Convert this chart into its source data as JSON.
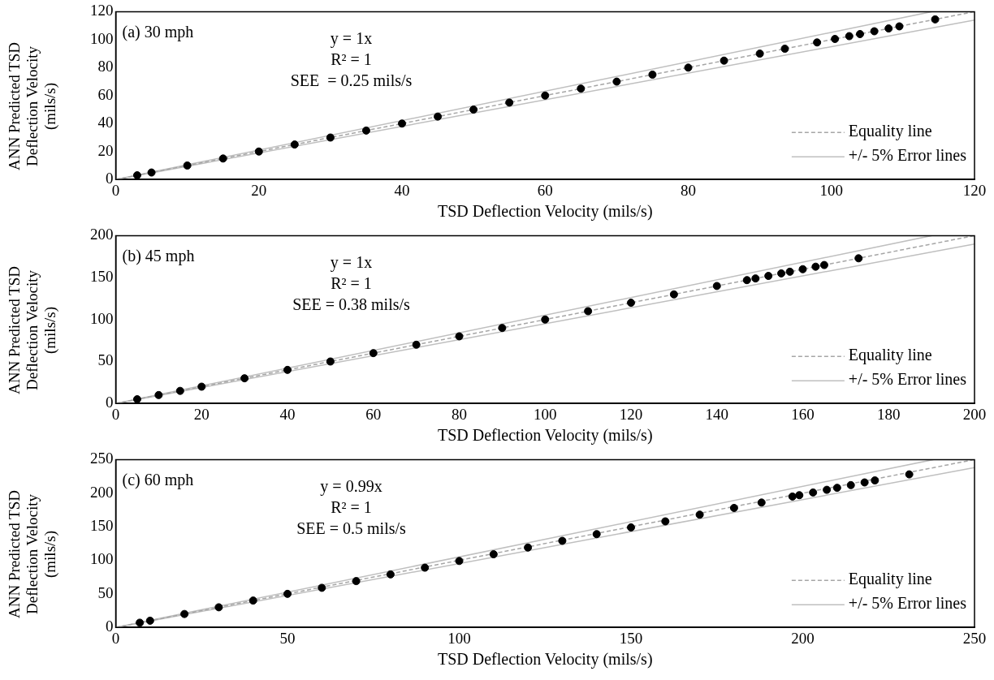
{
  "chart_data": [
    {
      "type": "scatter",
      "xlabel": "TSD Deflection Velocity (mils/s)",
      "ylabel": "ANN Predicted TSD Deflection Velocity (mils/s)",
      "xlim": [
        0,
        120
      ],
      "ylim": [
        0,
        120
      ],
      "xticks": [
        0,
        20,
        40,
        60,
        80,
        100,
        120
      ],
      "yticks": [
        0,
        20,
        40,
        60,
        80,
        100,
        120
      ],
      "grid": false,
      "legend": "bottom right",
      "annotations": [
        "(a) 30 mph",
        "y = 1x",
        "R² = 1",
        "SEE  = 0.25 mils/s"
      ],
      "series": [
        {
          "type": "scatter",
          "marker": "circle",
          "color": "#000000",
          "x": [
            3,
            5,
            10,
            15,
            20,
            25,
            30,
            35,
            40,
            45,
            50,
            55,
            60,
            65,
            70,
            75,
            80,
            85,
            90,
            93.5,
            98,
            100.5,
            102.5,
            104,
            106,
            108,
            109.5,
            114.5
          ],
          "values": [
            3,
            5,
            10,
            15,
            20,
            25,
            30,
            35,
            40,
            45,
            50,
            55,
            60,
            65,
            70,
            75,
            80,
            85,
            90,
            93.5,
            98,
            100.5,
            102.5,
            104,
            106,
            108,
            109.5,
            114.5
          ]
        },
        {
          "type": "line",
          "name": "Equality line",
          "marker": "none",
          "line_style": "dashed",
          "color": "#a6a6a6",
          "x": [
            0,
            120
          ],
          "values": [
            0,
            120
          ]
        },
        {
          "type": "line",
          "name": "+/- 5% Error lines",
          "marker": "none",
          "line_style": "solid",
          "color": "#bfbfbf",
          "x": [
            0,
            114
          ],
          "values": [
            0,
            120
          ]
        },
        {
          "type": "line",
          "marker": "none",
          "line_style": "solid",
          "color": "#bfbfbf",
          "x": [
            0,
            120
          ],
          "values": [
            0,
            114
          ]
        }
      ]
    },
    {
      "type": "scatter",
      "xlabel": "TSD Deflection Velocity (mils/s)",
      "ylabel": "ANN Predicted TSD Deflection Velocity (mils/s)",
      "xlim": [
        0,
        200
      ],
      "ylim": [
        0,
        200
      ],
      "xticks": [
        0,
        20,
        40,
        60,
        80,
        100,
        120,
        140,
        160,
        180,
        200
      ],
      "yticks": [
        0,
        50,
        100,
        150,
        200
      ],
      "grid": false,
      "legend": "bottom right",
      "annotations": [
        "(b) 45 mph",
        "y = 1x",
        "R² = 1",
        "SEE = 0.38 mils/s"
      ],
      "series": [
        {
          "type": "scatter",
          "marker": "circle",
          "color": "#000000",
          "x": [
            5,
            10,
            15,
            20,
            30,
            40,
            50,
            60,
            70,
            80,
            90,
            100,
            110,
            120,
            130,
            140,
            147,
            149,
            152,
            155,
            157,
            160,
            163,
            165,
            173
          ],
          "values": [
            5,
            10,
            15,
            20,
            30,
            40,
            50,
            60,
            70,
            80,
            90,
            100,
            110,
            120,
            130,
            140,
            147,
            149,
            152,
            155,
            157,
            160,
            163,
            165,
            173
          ]
        },
        {
          "type": "line",
          "name": "Equality line",
          "marker": "none",
          "line_style": "dashed",
          "color": "#a6a6a6",
          "x": [
            0,
            200
          ],
          "values": [
            0,
            200
          ]
        },
        {
          "type": "line",
          "name": "+/- 5% Error lines",
          "marker": "none",
          "line_style": "solid",
          "color": "#bfbfbf",
          "x": [
            0,
            190
          ],
          "values": [
            0,
            200
          ]
        },
        {
          "type": "line",
          "marker": "none",
          "line_style": "solid",
          "color": "#bfbfbf",
          "x": [
            0,
            200
          ],
          "values": [
            0,
            190
          ]
        }
      ]
    },
    {
      "type": "scatter",
      "xlabel": "TSD Deflection Velocity (mils/s)",
      "ylabel": "ANN Predicted TSD Deflection Velocity (mils/s)",
      "xlim": [
        0,
        250
      ],
      "ylim": [
        0,
        250
      ],
      "xticks": [
        0,
        50,
        100,
        150,
        200,
        250
      ],
      "yticks": [
        0,
        50,
        100,
        150,
        200,
        250
      ],
      "grid": false,
      "legend": "bottom right",
      "annotations": [
        "(c) 60 mph",
        "y = 0.99x",
        "R² = 1",
        "SEE = 0.5 mils/s"
      ],
      "series": [
        {
          "type": "scatter",
          "marker": "circle",
          "color": "#000000",
          "x": [
            7,
            10,
            20,
            30,
            40,
            50,
            60,
            70,
            80,
            90,
            100,
            110,
            120,
            130,
            140,
            150,
            160,
            170,
            180,
            188,
            197,
            199,
            203,
            207,
            210,
            214,
            218,
            221,
            231
          ],
          "values": [
            7,
            10,
            20,
            30,
            40,
            50,
            59,
            69,
            79,
            89,
            99,
            109,
            119,
            129,
            139,
            149,
            158,
            168,
            178,
            186,
            195,
            197,
            201,
            205,
            208,
            212,
            216,
            219,
            228
          ]
        },
        {
          "type": "line",
          "name": "Equality line",
          "marker": "none",
          "line_style": "dashed",
          "color": "#a6a6a6",
          "x": [
            0,
            250
          ],
          "values": [
            0,
            250
          ]
        },
        {
          "type": "line",
          "name": "+/- 5% Error lines",
          "marker": "none",
          "line_style": "solid",
          "color": "#bfbfbf",
          "x": [
            0,
            238
          ],
          "values": [
            0,
            250
          ]
        },
        {
          "type": "line",
          "marker": "none",
          "line_style": "solid",
          "color": "#bfbfbf",
          "x": [
            0,
            250
          ],
          "values": [
            0,
            238
          ]
        }
      ]
    }
  ]
}
